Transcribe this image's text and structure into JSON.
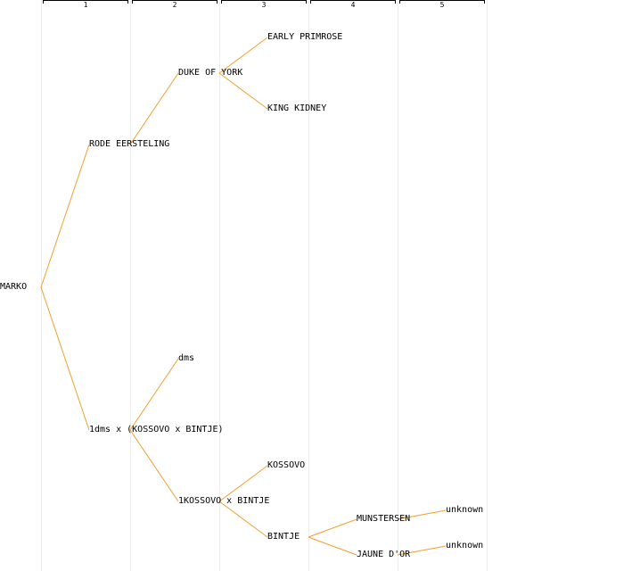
{
  "generations": [
    "1",
    "2",
    "3",
    "4",
    "5"
  ],
  "edge_color": "#f0a030",
  "tree": {
    "name": "MARKO",
    "children": [
      {
        "name": "RODE EERSTELING",
        "children": [
          {
            "name": "DUKE OF YORK",
            "children": [
              {
                "name": "EARLY PRIMROSE"
              },
              {
                "name": "KING KIDNEY"
              }
            ]
          }
        ]
      },
      {
        "name": "1dms x (KOSSOVO x BINTJE)",
        "children": [
          {
            "name": "dms"
          },
          {
            "name": "1KOSSOVO x BINTJE",
            "children": [
              {
                "name": "KOSSOVO"
              },
              {
                "name": "BINTJE",
                "children": [
                  {
                    "name": "MUNSTERSEN",
                    "children": [
                      {
                        "name": "unknown"
                      }
                    ]
                  },
                  {
                    "name": "JAUNE D'OR",
                    "children": [
                      {
                        "name": "unknown"
                      }
                    ]
                  }
                ]
              }
            ]
          }
        ]
      }
    ]
  }
}
